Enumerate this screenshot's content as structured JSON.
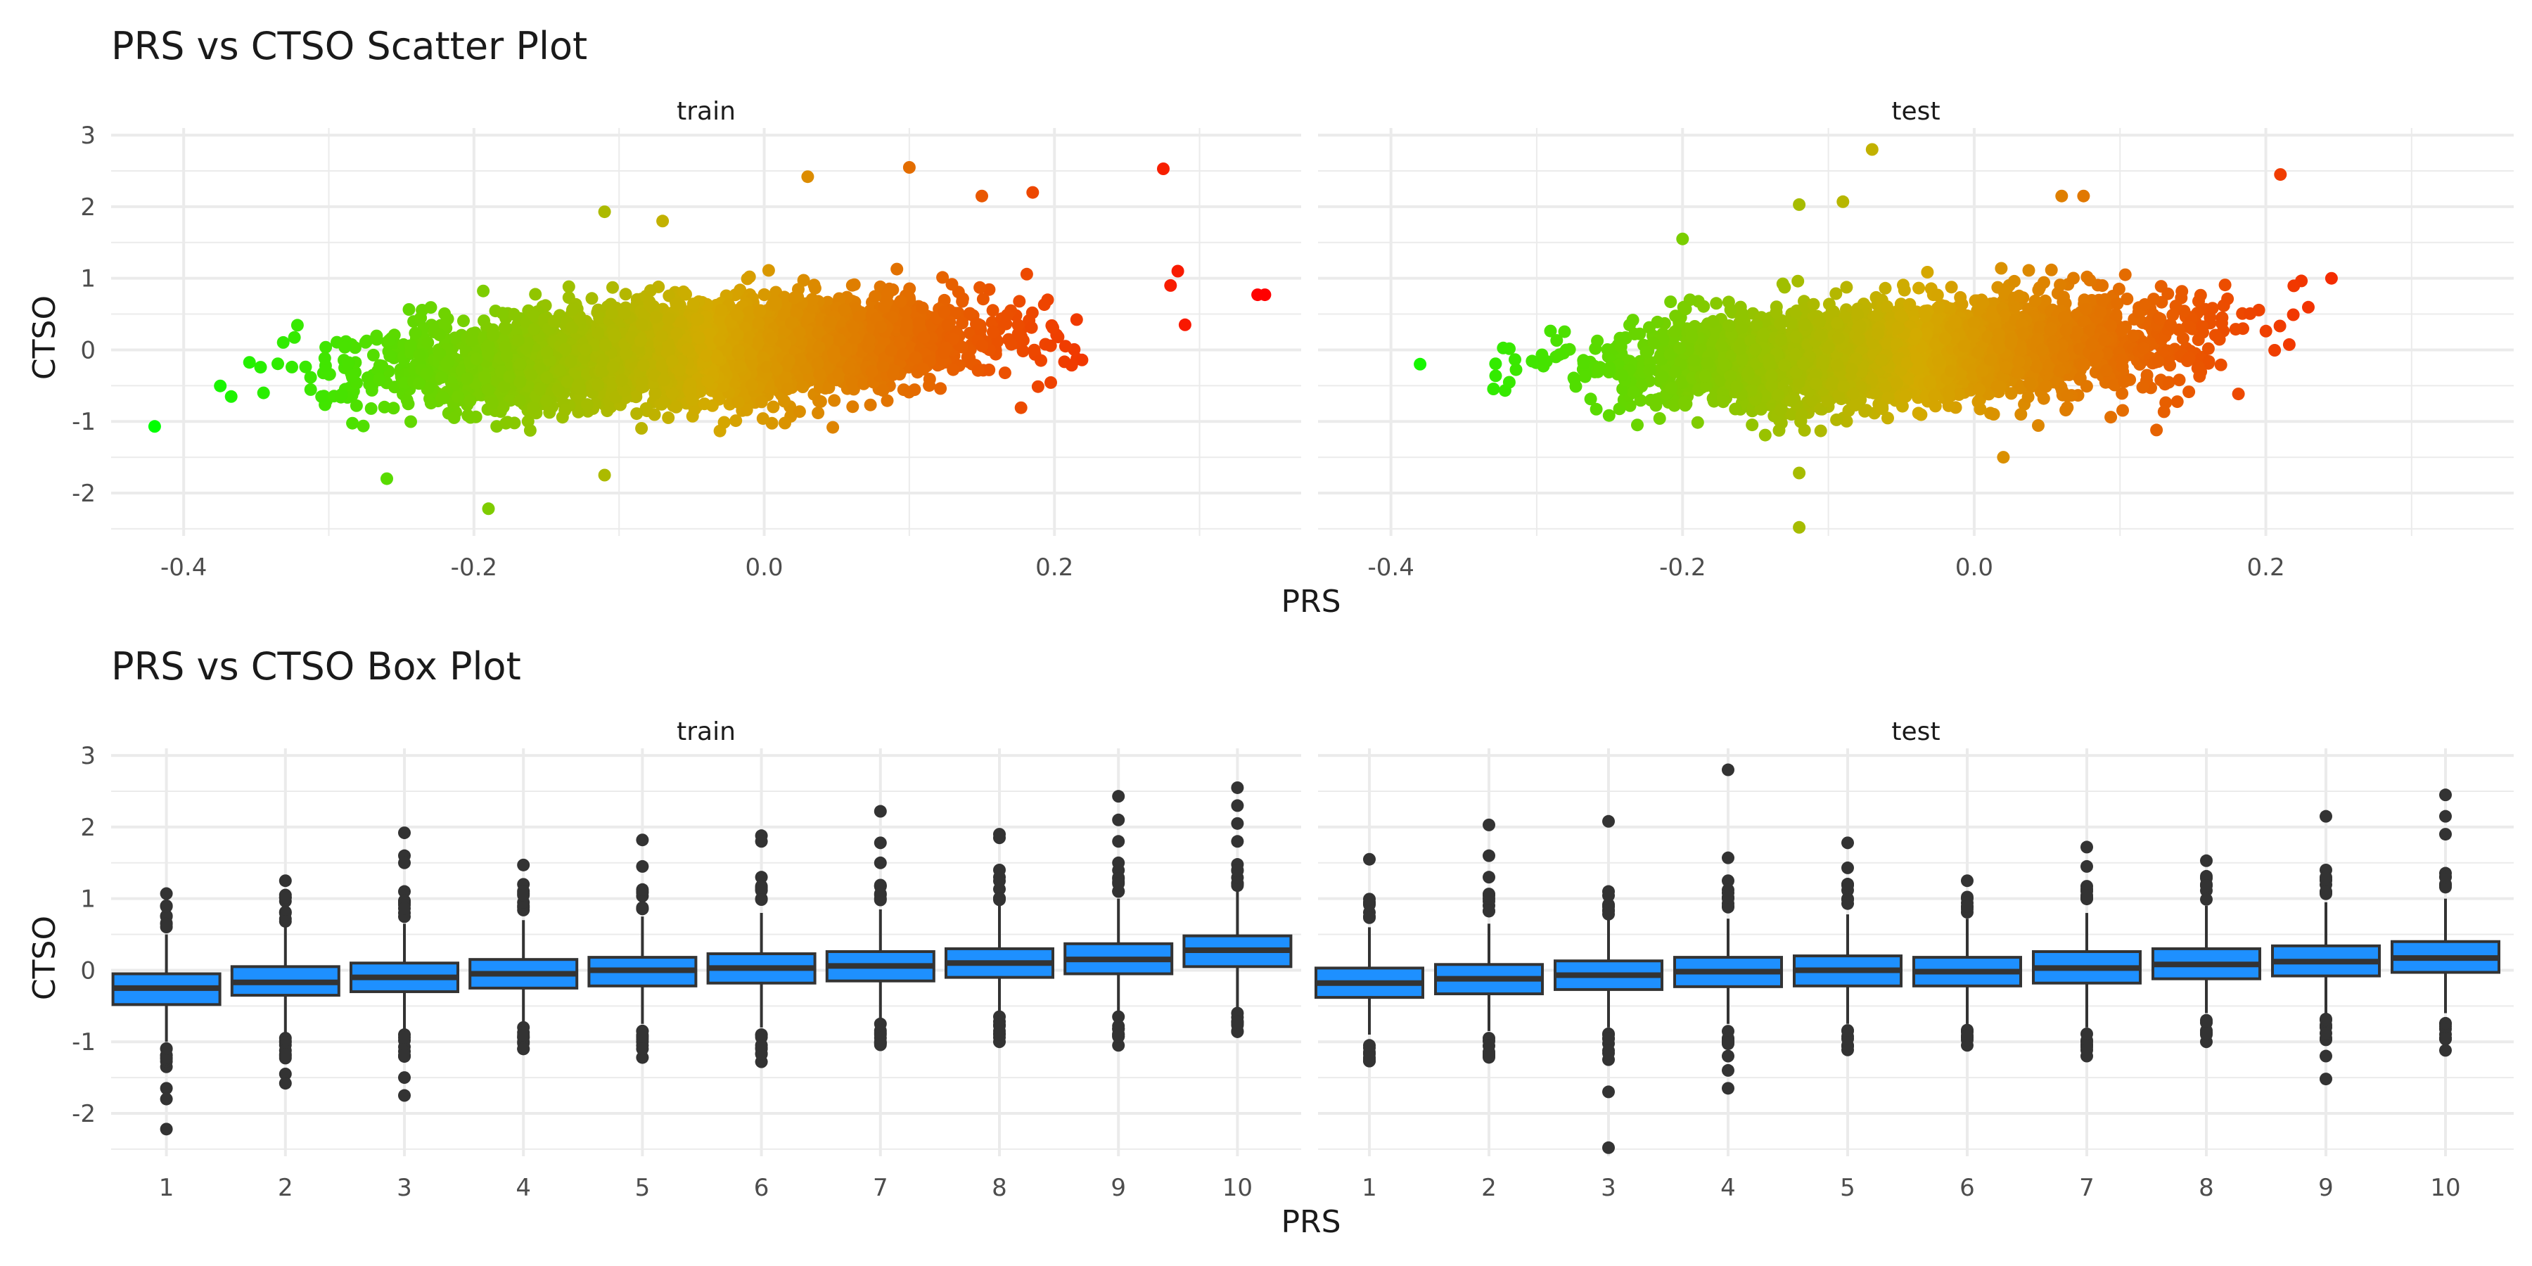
{
  "figure": {
    "background": "#ffffff",
    "grid_color": "#ebebeb",
    "text_color": "#1a1a1a",
    "tick_color": "#4d4d4d"
  },
  "chart_data": [
    {
      "type": "scatter",
      "title": "PRS vs CTSO Scatter Plot",
      "xlabel": "PRS",
      "ylabel": "CTSO",
      "facets": [
        "train",
        "test"
      ],
      "xlim": [
        -0.45,
        0.37
      ],
      "ylim": [
        -2.6,
        3.1
      ],
      "x_ticks": [
        -0.4,
        -0.2,
        0.0,
        0.2
      ],
      "x_tick_labels": [
        "-0.4",
        "-0.2",
        "0.0",
        "0.2"
      ],
      "y_ticks": [
        -2,
        -1,
        0,
        1,
        2,
        3
      ],
      "y_tick_labels": [
        "-2",
        "-1",
        "0",
        "1",
        "2",
        "3"
      ],
      "grid": true,
      "legend": "none",
      "color_scale": {
        "low": "#00ff00",
        "mid": "#d4aa00",
        "high": "#ff0000",
        "mapped_to": "PRS"
      },
      "approx_trend": {
        "slope": 2.9,
        "intercept": 0.0,
        "spread_sd": 0.33
      },
      "density_points": [
        {
          "facet": "train",
          "x": -0.35,
          "y": -0.45
        },
        {
          "facet": "train",
          "x": -0.25,
          "y": -0.3
        },
        {
          "facet": "train",
          "x": -0.15,
          "y": -0.15
        },
        {
          "facet": "train",
          "x": -0.05,
          "y": 0.0
        },
        {
          "facet": "train",
          "x": 0.05,
          "y": 0.15
        },
        {
          "facet": "train",
          "x": 0.15,
          "y": 0.35
        },
        {
          "facet": "test",
          "x": -0.3,
          "y": -0.3
        },
        {
          "facet": "test",
          "x": -0.2,
          "y": -0.2
        },
        {
          "facet": "test",
          "x": -0.1,
          "y": -0.1
        },
        {
          "facet": "test",
          "x": 0.0,
          "y": 0.0
        },
        {
          "facet": "test",
          "x": 0.1,
          "y": 0.15
        },
        {
          "facet": "test",
          "x": 0.2,
          "y": 0.35
        }
      ],
      "outlier_points": [
        {
          "facet": "train",
          "x": -0.42,
          "y": -1.07
        },
        {
          "facet": "train",
          "x": -0.26,
          "y": -1.8
        },
        {
          "facet": "train",
          "x": -0.19,
          "y": -2.22
        },
        {
          "facet": "train",
          "x": -0.11,
          "y": -1.75
        },
        {
          "facet": "train",
          "x": -0.11,
          "y": 1.93
        },
        {
          "facet": "train",
          "x": -0.07,
          "y": 1.8
        },
        {
          "facet": "train",
          "x": 0.03,
          "y": 2.42
        },
        {
          "facet": "train",
          "x": 0.1,
          "y": 2.55
        },
        {
          "facet": "train",
          "x": 0.15,
          "y": 2.15
        },
        {
          "facet": "train",
          "x": 0.185,
          "y": 2.2
        },
        {
          "facet": "train",
          "x": 0.275,
          "y": 2.53
        },
        {
          "facet": "train",
          "x": 0.285,
          "y": 1.1
        },
        {
          "facet": "train",
          "x": 0.28,
          "y": 0.9
        },
        {
          "facet": "train",
          "x": 0.29,
          "y": 0.35
        },
        {
          "facet": "train",
          "x": 0.34,
          "y": 0.77
        },
        {
          "facet": "train",
          "x": 0.345,
          "y": 0.77
        },
        {
          "facet": "test",
          "x": -0.38,
          "y": -0.2
        },
        {
          "facet": "test",
          "x": -0.2,
          "y": 1.55
        },
        {
          "facet": "test",
          "x": -0.12,
          "y": 2.03
        },
        {
          "facet": "test",
          "x": -0.09,
          "y": 2.07
        },
        {
          "facet": "test",
          "x": -0.07,
          "y": 2.8
        },
        {
          "facet": "test",
          "x": 0.06,
          "y": 2.15
        },
        {
          "facet": "test",
          "x": 0.075,
          "y": 2.15
        },
        {
          "facet": "test",
          "x": 0.21,
          "y": 2.45
        },
        {
          "facet": "test",
          "x": 0.245,
          "y": 1.0
        },
        {
          "facet": "test",
          "x": -0.12,
          "y": -2.48
        },
        {
          "facet": "test",
          "x": -0.12,
          "y": -1.72
        },
        {
          "facet": "test",
          "x": 0.02,
          "y": -1.5
        },
        {
          "facet": "test",
          "x": 0.125,
          "y": -1.12
        }
      ]
    },
    {
      "type": "box",
      "title": "PRS vs CTSO Box Plot",
      "xlabel": "PRS",
      "ylabel": "CTSO",
      "facets": [
        "train",
        "test"
      ],
      "categories": [
        "1",
        "2",
        "3",
        "4",
        "5",
        "6",
        "7",
        "8",
        "9",
        "10"
      ],
      "ylim": [
        -2.6,
        3.1
      ],
      "y_ticks": [
        -2,
        -1,
        0,
        1,
        2,
        3
      ],
      "y_tick_labels": [
        "-2",
        "-1",
        "0",
        "1",
        "2",
        "3"
      ],
      "grid": true,
      "legend": "none",
      "box_fill": "#1e90ff",
      "box_line": "#333333",
      "series": [
        {
          "facet": "train",
          "boxes": [
            {
              "q1": -0.48,
              "median": -0.25,
              "q3": -0.05,
              "whisker_low": -1.0,
              "whisker_high": 0.5,
              "outliers": [
                1.07,
                0.9,
                0.75,
                -1.1,
                -1.35,
                -1.65,
                -1.8,
                -2.22
              ]
            },
            {
              "q1": -0.35,
              "median": -0.17,
              "q3": 0.05,
              "whisker_low": -0.9,
              "whisker_high": 0.6,
              "outliers": [
                1.25,
                1.05,
                0.8,
                -0.95,
                -1.2,
                -1.45,
                -1.58
              ]
            },
            {
              "q1": -0.3,
              "median": -0.1,
              "q3": 0.1,
              "whisker_low": -0.85,
              "whisker_high": 0.65,
              "outliers": [
                1.92,
                1.6,
                1.5,
                1.1,
                0.8,
                -0.9,
                -1.2,
                -1.5,
                -1.75
              ]
            },
            {
              "q1": -0.25,
              "median": -0.05,
              "q3": 0.15,
              "whisker_low": -0.75,
              "whisker_high": 0.7,
              "outliers": [
                1.47,
                1.2,
                0.9,
                -0.8,
                -1.0,
                -1.1
              ]
            },
            {
              "q1": -0.22,
              "median": 0.0,
              "q3": 0.18,
              "whisker_low": -0.75,
              "whisker_high": 0.75,
              "outliers": [
                1.82,
                1.45,
                1.1,
                -0.85,
                -1.0,
                -1.22
              ]
            },
            {
              "q1": -0.18,
              "median": 0.03,
              "q3": 0.23,
              "whisker_low": -0.8,
              "whisker_high": 0.8,
              "outliers": [
                1.88,
                1.8,
                1.3,
                1.0,
                -0.9,
                -1.1,
                -1.28
              ]
            },
            {
              "q1": -0.15,
              "median": 0.06,
              "q3": 0.26,
              "whisker_low": -0.7,
              "whisker_high": 0.85,
              "outliers": [
                2.22,
                1.78,
                1.5,
                1.0,
                -0.75,
                -0.9,
                -1.0
              ]
            },
            {
              "q1": -0.1,
              "median": 0.1,
              "q3": 0.3,
              "whisker_low": -0.6,
              "whisker_high": 0.9,
              "outliers": [
                1.9,
                1.85,
                1.4,
                1.0,
                -0.65,
                -0.85,
                -1.0
              ]
            },
            {
              "q1": -0.05,
              "median": 0.15,
              "q3": 0.37,
              "whisker_low": -0.6,
              "whisker_high": 1.0,
              "outliers": [
                2.43,
                2.1,
                1.8,
                1.5,
                1.1,
                -0.65,
                -0.9,
                -1.05
              ]
            },
            {
              "q1": 0.05,
              "median": 0.28,
              "q3": 0.48,
              "whisker_low": -0.55,
              "whisker_high": 1.1,
              "outliers": [
                2.55,
                2.3,
                2.05,
                1.8,
                1.4,
                1.2,
                -0.6,
                -0.75,
                -0.85
              ]
            }
          ]
        },
        {
          "facet": "test",
          "boxes": [
            {
              "q1": -0.38,
              "median": -0.18,
              "q3": 0.03,
              "whisker_low": -0.9,
              "whisker_high": 0.6,
              "outliers": [
                1.55,
                0.95,
                0.75,
                -1.05,
                -1.27
              ]
            },
            {
              "q1": -0.33,
              "median": -0.12,
              "q3": 0.08,
              "whisker_low": -0.85,
              "whisker_high": 0.65,
              "outliers": [
                2.03,
                1.6,
                1.3,
                1.0,
                -0.95,
                -1.2
              ]
            },
            {
              "q1": -0.27,
              "median": -0.07,
              "q3": 0.13,
              "whisker_low": -0.8,
              "whisker_high": 0.7,
              "outliers": [
                2.08,
                1.1,
                0.9,
                -0.9,
                -1.25,
                -1.7,
                -2.48
              ]
            },
            {
              "q1": -0.23,
              "median": -0.02,
              "q3": 0.18,
              "whisker_low": -0.75,
              "whisker_high": 0.72,
              "outliers": [
                2.8,
                1.57,
                1.25,
                1.0,
                -0.95,
                -1.2,
                -1.4,
                -1.65
              ]
            },
            {
              "q1": -0.22,
              "median": 0.0,
              "q3": 0.2,
              "whisker_low": -0.75,
              "whisker_high": 0.78,
              "outliers": [
                1.78,
                1.43,
                1.0,
                -0.85,
                -1.05
              ]
            },
            {
              "q1": -0.22,
              "median": -0.02,
              "q3": 0.18,
              "whisker_low": -0.75,
              "whisker_high": 0.72,
              "outliers": [
                1.25,
                1.0,
                -0.85,
                -1.05
              ]
            },
            {
              "q1": -0.18,
              "median": 0.03,
              "q3": 0.26,
              "whisker_low": -0.8,
              "whisker_high": 0.8,
              "outliers": [
                1.72,
                1.45,
                1.0,
                -1.0,
                -1.2
              ]
            },
            {
              "q1": -0.12,
              "median": 0.08,
              "q3": 0.3,
              "whisker_low": -0.6,
              "whisker_high": 0.9,
              "outliers": [
                1.53,
                1.2,
                -0.7,
                -0.9,
                -1.0
              ]
            },
            {
              "q1": -0.08,
              "median": 0.12,
              "q3": 0.34,
              "whisker_low": -0.6,
              "whisker_high": 0.95,
              "outliers": [
                2.15,
                1.4,
                1.1,
                -0.8,
                -1.2,
                -1.52
              ]
            },
            {
              "q1": -0.03,
              "median": 0.17,
              "q3": 0.4,
              "whisker_low": -0.6,
              "whisker_high": 1.0,
              "outliers": [
                2.45,
                2.15,
                1.9,
                1.3,
                -0.75,
                -0.95,
                -1.12
              ]
            }
          ]
        }
      ]
    }
  ]
}
